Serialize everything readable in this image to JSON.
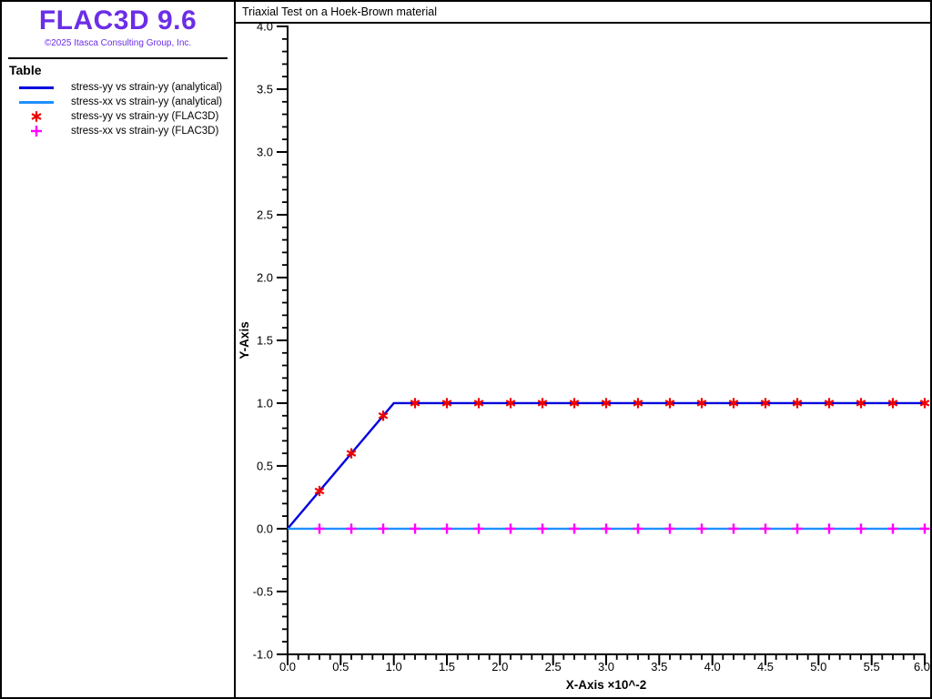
{
  "sidebar": {
    "logo_title": "FLAC3D 9.6",
    "copyright": "©2025 Itasca Consulting Group, Inc.",
    "accent_color": "#6B2EE6"
  },
  "legend": {
    "title": "Table",
    "items": [
      {
        "label": "stress-yy vs strain-yy (analytical)",
        "swatch": "line",
        "color": "#0000DD"
      },
      {
        "label": "stress-xx vs strain-yy (analytical)",
        "swatch": "line",
        "color": "#1E90FF"
      },
      {
        "label": "stress-yy vs strain-yy (FLAC3D)",
        "swatch": "asterisk-marker",
        "color": "#EE0000"
      },
      {
        "label": "stress-xx vs strain-yy (FLAC3D)",
        "swatch": "plus-marker",
        "color": "#FF00FF"
      }
    ]
  },
  "chart": {
    "title": "Triaxial Test on a Hoek-Brown material"
  },
  "chart_data": {
    "type": "line",
    "title": "Triaxial Test on a Hoek-Brown material",
    "xlabel": "X-Axis ×10^-2",
    "ylabel": "Y-Axis",
    "xlim": [
      0.0,
      6.0
    ],
    "ylim": [
      -1.0,
      4.0
    ],
    "x_major_step": 0.5,
    "x_minor_step": 0.1,
    "y_major_step": 0.5,
    "y_minor_step": 0.1,
    "grid": false,
    "legend_position": "left-panel",
    "x_tick_labels": [
      "0.0",
      "0.5",
      "1.0",
      "1.5",
      "2.0",
      "2.5",
      "3.0",
      "3.5",
      "4.0",
      "4.5",
      "5.0",
      "5.5",
      "6.0"
    ],
    "y_tick_labels": [
      "-1.0",
      "-0.5",
      "0.0",
      "0.5",
      "1.0",
      "1.5",
      "2.0",
      "2.5",
      "3.0",
      "3.5",
      "4.0"
    ],
    "series": [
      {
        "name": "stress-yy vs strain-yy (analytical)",
        "type": "line",
        "color": "#0000DD",
        "x": [
          0.0,
          1.0,
          6.0
        ],
        "y": [
          0.0,
          1.0,
          1.0
        ]
      },
      {
        "name": "stress-xx vs strain-yy (analytical)",
        "type": "line",
        "color": "#1E90FF",
        "x": [
          0.0,
          6.0
        ],
        "y": [
          0.0,
          0.0
        ]
      },
      {
        "name": "stress-yy vs strain-yy (FLAC3D)",
        "type": "scatter",
        "marker": "asterisk",
        "color": "#EE0000",
        "x": [
          0.3,
          0.6,
          0.9,
          1.2,
          1.5,
          1.8,
          2.1,
          2.4,
          2.7,
          3.0,
          3.3,
          3.6,
          3.9,
          4.2,
          4.5,
          4.8,
          5.1,
          5.4,
          5.7,
          6.0
        ],
        "y": [
          0.3,
          0.6,
          0.9,
          1.0,
          1.0,
          1.0,
          1.0,
          1.0,
          1.0,
          1.0,
          1.0,
          1.0,
          1.0,
          1.0,
          1.0,
          1.0,
          1.0,
          1.0,
          1.0,
          1.0
        ]
      },
      {
        "name": "stress-xx vs strain-yy (FLAC3D)",
        "type": "scatter",
        "marker": "plus",
        "color": "#FF00FF",
        "x": [
          0.3,
          0.6,
          0.9,
          1.2,
          1.5,
          1.8,
          2.1,
          2.4,
          2.7,
          3.0,
          3.3,
          3.6,
          3.9,
          4.2,
          4.5,
          4.8,
          5.1,
          5.4,
          5.7,
          6.0
        ],
        "y": [
          0.0,
          0.0,
          0.0,
          0.0,
          0.0,
          0.0,
          0.0,
          0.0,
          0.0,
          0.0,
          0.0,
          0.0,
          0.0,
          0.0,
          0.0,
          0.0,
          0.0,
          0.0,
          0.0,
          0.0
        ]
      }
    ]
  }
}
